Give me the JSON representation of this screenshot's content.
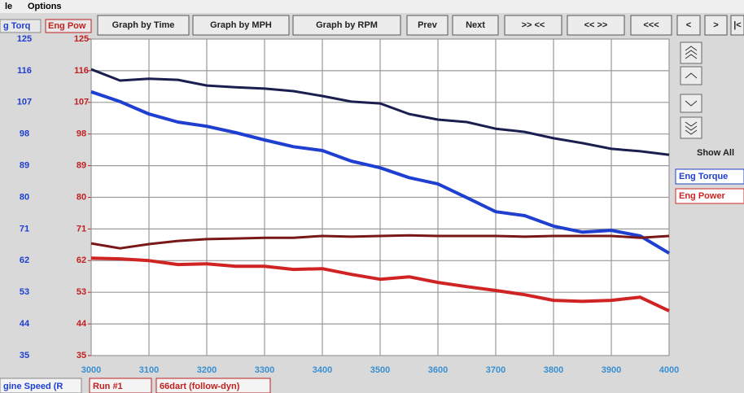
{
  "menu": [
    "le",
    "Options"
  ],
  "toolbar": [
    "Graph by Time",
    "Graph by MPH",
    "Graph by RPM",
    "Prev",
    "Next",
    ">> <<",
    "<< >>",
    "<<<",
    "<",
    ">",
    "|<"
  ],
  "side_panel": {
    "show_all": "Show All"
  },
  "status_bar": [
    "gine Speed (R",
    "Run #1",
    "66dart (follow-dyn)"
  ],
  "chart_data": {
    "type": "line",
    "y_label": "g Torq",
    "y2_label": "Eng Pow",
    "x": [
      3000,
      3050,
      3100,
      3150,
      3200,
      3250,
      3300,
      3350,
      3400,
      3450,
      3500,
      3550,
      3600,
      3650,
      3700,
      3750,
      3800,
      3850,
      3900,
      3950,
      4000
    ],
    "xlim": [
      3000,
      4000
    ],
    "xticks": [
      3000,
      3100,
      3200,
      3300,
      3400,
      3500,
      3600,
      3700,
      3800,
      3900,
      4000
    ],
    "ylim": [
      35,
      125
    ],
    "yticks": [
      35,
      44,
      53,
      62,
      71,
      80,
      89,
      98,
      107,
      116,
      125
    ],
    "y2lim": [
      35,
      125
    ],
    "y2ticks": [
      35,
      44,
      53,
      62,
      71,
      80,
      89,
      98,
      107,
      116,
      125
    ],
    "grid": true,
    "legend": "right",
    "series": [
      {
        "color": "#1a1f4f",
        "values": [
          116.4,
          113.2,
          113.7,
          113.4,
          111.8,
          111.3,
          110.9,
          110.2,
          108.8,
          107.2,
          106.7,
          103.7,
          102.1,
          101.4,
          99.5,
          98.6,
          96.8,
          95.4,
          93.8,
          93.1,
          92.1
        ]
      },
      {
        "name": "Eng Torque",
        "color": "#1f3fd0",
        "values": [
          110.0,
          107.2,
          103.7,
          101.4,
          100.2,
          98.4,
          96.3,
          94.4,
          93.3,
          90.3,
          88.4,
          85.6,
          83.8,
          79.9,
          75.9,
          74.8,
          71.8,
          70.1,
          70.6,
          69.0,
          64.1
        ]
      },
      {
        "color": "#7a1818",
        "axis": "y2",
        "values": [
          66.9,
          65.5,
          66.7,
          67.6,
          68.1,
          68.3,
          68.5,
          68.5,
          69.0,
          68.8,
          69.0,
          69.2,
          69.0,
          69.0,
          69.0,
          68.8,
          69.0,
          69.0,
          69.0,
          68.5,
          69.0
        ]
      },
      {
        "name": "Eng Power",
        "color": "#d02424",
        "axis": "y2",
        "values": [
          62.7,
          62.5,
          62.0,
          60.9,
          61.1,
          60.4,
          60.4,
          59.5,
          59.7,
          58.1,
          56.7,
          57.4,
          55.8,
          54.6,
          53.5,
          52.3,
          50.7,
          50.4,
          50.7,
          51.6,
          47.7
        ]
      }
    ]
  }
}
